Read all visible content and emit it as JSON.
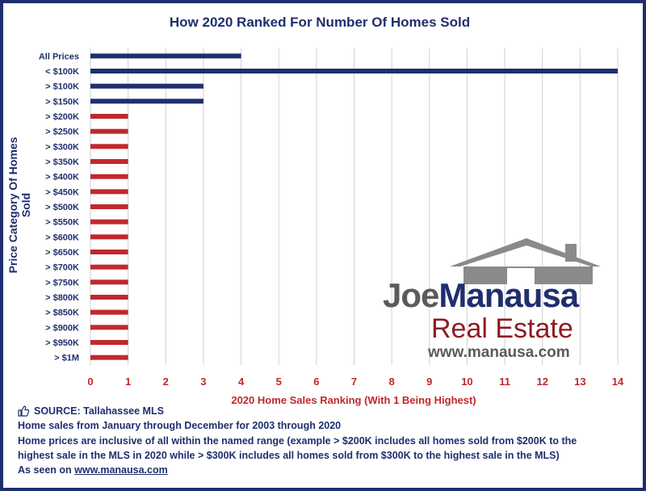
{
  "title": "How 2020 Ranked For Number Of Homes Sold",
  "colors": {
    "navy": "#1f2f6e",
    "red": "#c0282d",
    "grid": "#d0d0d0"
  },
  "chart_data": {
    "type": "bar",
    "orientation": "horizontal",
    "title": "How 2020 Ranked For Number Of Homes Sold",
    "xlabel": "2020 Home Sales Ranking (With 1 Being Highest)",
    "ylabel": "Price Category Of Homes Sold",
    "xlim": [
      0,
      14
    ],
    "xticks": [
      "0",
      "1",
      "2",
      "3",
      "4",
      "5",
      "6",
      "7",
      "8",
      "9",
      "10",
      "11",
      "12",
      "13",
      "14"
    ],
    "grid": "vertical",
    "categories": [
      "All Prices",
      "< $100K",
      "> $100K",
      "> $150K",
      "> $200K",
      "> $250K",
      "> $300K",
      "> $350K",
      "> $400K",
      "> $450K",
      "> $500K",
      "> $550K",
      "> $600K",
      "> $650K",
      "> $700K",
      "> $750K",
      "> $800K",
      "> $850K",
      "> $900K",
      "> $950K",
      "> $1M"
    ],
    "values": [
      4,
      14,
      3,
      3,
      1,
      1,
      1,
      1,
      1,
      1,
      1,
      1,
      1,
      1,
      1,
      1,
      1,
      1,
      1,
      1,
      1
    ],
    "bar_colors": [
      "#1f2f6e",
      "#1f2f6e",
      "#1f2f6e",
      "#1f2f6e",
      "#c0282d",
      "#c0282d",
      "#c0282d",
      "#c0282d",
      "#c0282d",
      "#c0282d",
      "#c0282d",
      "#c0282d",
      "#c0282d",
      "#c0282d",
      "#c0282d",
      "#c0282d",
      "#c0282d",
      "#c0282d",
      "#c0282d",
      "#c0282d",
      "#c0282d"
    ]
  },
  "footer": {
    "source": "SOURCE: Tallahassee MLS",
    "line1": "Home sales from January through December for 2003 through 2020",
    "line2": "Home prices are inclusive of all within the named range (example > $200K includes all homes sold from $200K to the",
    "line3": "highest sale in the MLS in 2020 while > $300K includes all homes sold from $300K to the highest sale in the MLS)",
    "seen_prefix": "As seen on ",
    "seen_link": "www.manausa.com"
  },
  "logo": {
    "joe": "Joe",
    "manausa": "Manausa",
    "real_estate": "Real Estate",
    "url": "www.manausa.com"
  }
}
